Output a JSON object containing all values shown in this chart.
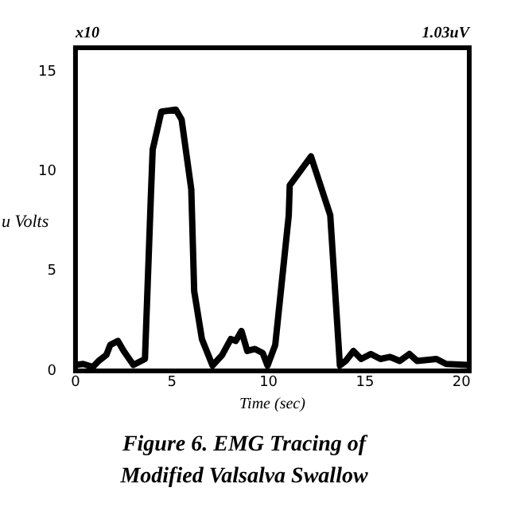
{
  "chart_data": {
    "type": "line",
    "title": "Figure 6. EMG Tracing of\nModified Valsalva Swallow",
    "xlabel": "Time (sec)",
    "ylabel": "u Volts",
    "annotations": [
      "x10",
      "1.03uV"
    ],
    "xlim": [
      0,
      20.4
    ],
    "xticks": [
      0,
      5,
      10,
      15,
      20
    ],
    "ylim": [
      0,
      16.2
    ],
    "yticks": [
      0,
      5,
      10,
      15
    ],
    "grid": false,
    "legend": false,
    "marker": "none",
    "line_style": "solid",
    "series": [
      {
        "color": "#000000",
        "x": [
          0,
          0.4,
          0.9,
          1.2,
          1.6,
          1.8,
          2.2,
          2.5,
          3.0,
          3.6,
          3.9,
          4.0,
          4.45,
          5.2,
          5.5,
          6.0,
          6.15,
          6.55,
          7.1,
          7.6,
          8.05,
          8.3,
          8.6,
          8.9,
          9.3,
          9.7,
          9.95,
          10.35,
          11.05,
          11.1,
          12.2,
          13.1,
          13.2,
          13.7,
          14.0,
          14.4,
          14.8,
          15.3,
          15.8,
          16.3,
          16.8,
          17.3,
          17.7,
          18.7,
          19.2,
          20.3
        ],
        "values": [
          0.3,
          0.35,
          0.2,
          0.5,
          0.8,
          1.3,
          1.5,
          1.0,
          0.3,
          0.6,
          8.6,
          11.1,
          13.0,
          13.1,
          12.6,
          9.1,
          4.0,
          1.6,
          0.27,
          0.8,
          1.6,
          1.5,
          2.0,
          1.0,
          1.1,
          0.9,
          0.27,
          1.3,
          7.8,
          9.3,
          10.75,
          8.1,
          7.8,
          0.27,
          0.5,
          1.0,
          0.6,
          0.85,
          0.6,
          0.7,
          0.5,
          0.85,
          0.5,
          0.6,
          0.35,
          0.3
        ]
      }
    ]
  }
}
